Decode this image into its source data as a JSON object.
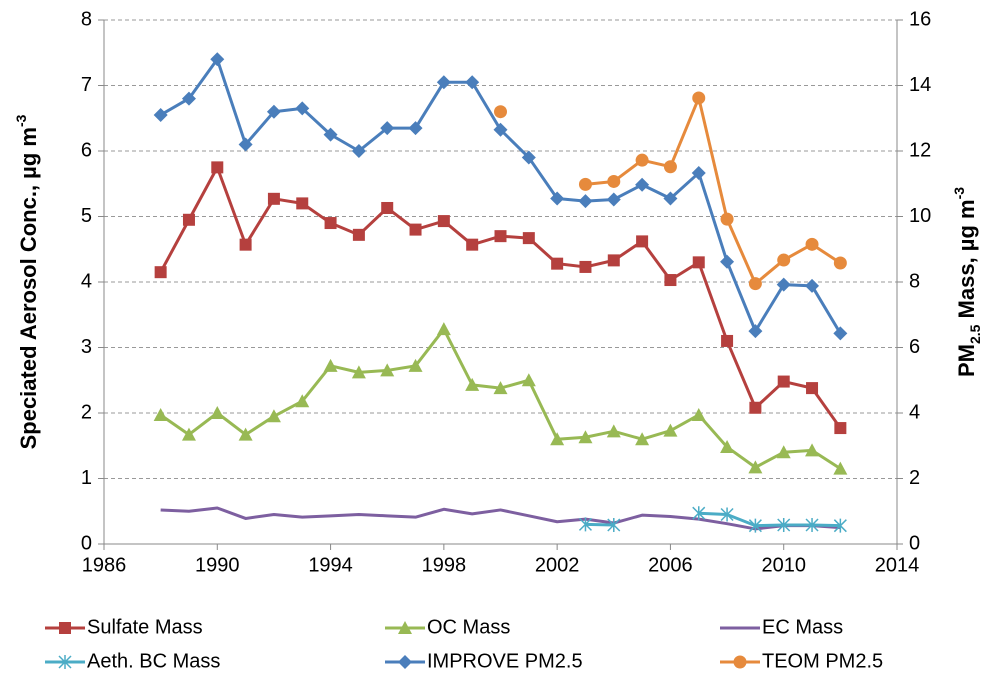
{
  "chart_data": {
    "type": "line",
    "y_label": [
      "Speciated Aerosol Conc., µg m",
      "-3"
    ],
    "y2_label": [
      "PM",
      "2.5",
      " Mass, µg m",
      "-3"
    ],
    "x": [
      1988,
      1989,
      1990,
      1991,
      1992,
      1993,
      1994,
      1995,
      1996,
      1997,
      1998,
      1999,
      2000,
      2001,
      2002,
      2003,
      2004,
      2005,
      2006,
      2007,
      2008,
      2009,
      2010,
      2011,
      2012
    ],
    "xlim": [
      1986,
      2014
    ],
    "xticks": [
      1986,
      1990,
      1994,
      1998,
      2002,
      2006,
      2010,
      2014
    ],
    "ylim": [
      0,
      8
    ],
    "yticks": [
      0,
      1,
      2,
      3,
      4,
      5,
      6,
      7,
      8
    ],
    "y2lim": [
      0,
      16
    ],
    "y2ticks": [
      0,
      2,
      4,
      6,
      8,
      10,
      12,
      14,
      16
    ],
    "grid": true,
    "legend": "bottom",
    "series": [
      {
        "name": "Sulfate Mass",
        "color": "#b5403e",
        "marker": "square",
        "values": [
          4.15,
          4.95,
          5.75,
          4.57,
          5.27,
          5.2,
          4.9,
          4.72,
          5.13,
          4.8,
          4.93,
          4.57,
          4.7,
          4.67,
          4.28,
          4.23,
          4.33,
          4.62,
          4.03,
          4.3,
          3.1,
          2.08,
          2.48,
          2.38,
          1.77
        ]
      },
      {
        "name": "OC Mass",
        "color": "#98b954",
        "marker": "triangle",
        "values": [
          1.97,
          1.67,
          2.0,
          1.67,
          1.95,
          2.18,
          2.72,
          2.62,
          2.65,
          2.72,
          3.28,
          2.43,
          2.38,
          2.5,
          1.6,
          1.63,
          1.72,
          1.6,
          1.73,
          1.97,
          1.48,
          1.17,
          1.4,
          1.43,
          1.15
        ]
      },
      {
        "name": "EC Mass",
        "color": "#7d5fa0",
        "marker": "none",
        "values": [
          0.52,
          0.5,
          0.55,
          0.39,
          0.45,
          0.41,
          0.43,
          0.45,
          0.43,
          0.41,
          0.53,
          0.46,
          0.52,
          0.43,
          0.34,
          0.38,
          0.32,
          0.44,
          0.42,
          0.38,
          0.31,
          0.23,
          0.28,
          0.28,
          0.25
        ]
      },
      {
        "name": "Aeth. BC Mass",
        "color": "#4bacc6",
        "marker": "star",
        "values": [
          null,
          null,
          null,
          null,
          null,
          null,
          null,
          null,
          null,
          null,
          null,
          null,
          null,
          null,
          null,
          0.3,
          0.29,
          null,
          null,
          0.47,
          0.45,
          0.28,
          0.29,
          0.29,
          0.28
        ]
      },
      {
        "name": "IMPROVE PM2.5",
        "color": "#4a7ebb",
        "marker": "diamond",
        "axis": "y2",
        "values": [
          13.1,
          13.6,
          14.8,
          12.2,
          13.2,
          13.3,
          12.5,
          12.0,
          12.7,
          12.7,
          14.1,
          14.1,
          12.65,
          11.8,
          10.55,
          10.47,
          10.52,
          10.97,
          10.55,
          11.33,
          8.62,
          6.5,
          7.92,
          7.88,
          6.43
        ]
      },
      {
        "name": "TEOM PM2.5",
        "color": "#e68a3c",
        "marker": "circle",
        "axis": "y2",
        "values": [
          null,
          null,
          null,
          null,
          null,
          null,
          null,
          null,
          null,
          null,
          null,
          null,
          13.2,
          null,
          null,
          10.98,
          11.07,
          11.72,
          11.52,
          13.62,
          9.92,
          7.95,
          8.67,
          9.15,
          8.58
        ]
      }
    ]
  }
}
